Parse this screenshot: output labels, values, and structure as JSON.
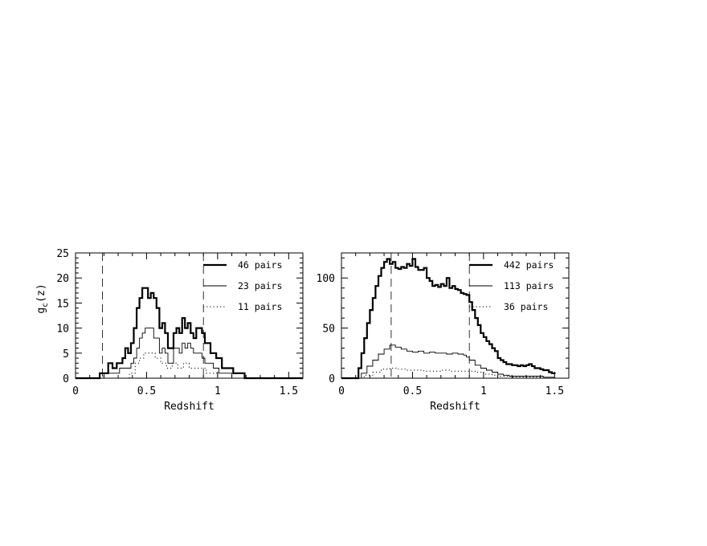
{
  "chart_data": [
    {
      "type": "line",
      "step": true,
      "xlabel": "Redshift",
      "ylabel": "g",
      "ylabel_sub": "c",
      "ylabel_suffix": "(z)",
      "xlim": [
        0,
        1.6
      ],
      "ylim": [
        0,
        25
      ],
      "xticks": [
        0,
        0.5,
        1,
        1.5
      ],
      "xtick_labels": [
        "0",
        "0.5",
        "1",
        "1.5"
      ],
      "yticks": [
        0,
        5,
        10,
        15,
        20,
        25
      ],
      "ytick_labels": [
        "0",
        "5",
        "10",
        "15",
        "20",
        "25"
      ],
      "vlines": [
        0.19,
        0.9
      ],
      "legend_position": "top-right",
      "series": [
        {
          "name": "46 pairs",
          "style": "thick-solid",
          "x": [
            0,
            0.17,
            0.19,
            0.23,
            0.26,
            0.29,
            0.31,
            0.33,
            0.35,
            0.37,
            0.39,
            0.41,
            0.43,
            0.45,
            0.47,
            0.49,
            0.51,
            0.53,
            0.55,
            0.57,
            0.59,
            0.61,
            0.63,
            0.65,
            0.67,
            0.69,
            0.71,
            0.73,
            0.75,
            0.77,
            0.79,
            0.81,
            0.83,
            0.85,
            0.87,
            0.89,
            0.91,
            0.93,
            0.95,
            0.97,
            0.99,
            1.01,
            1.03,
            1.05,
            1.07,
            1.09,
            1.11,
            1.13,
            1.15,
            1.17,
            1.19,
            1.6
          ],
          "y": [
            0,
            1,
            1,
            3,
            2,
            3,
            3,
            4,
            6,
            5,
            7,
            10,
            14,
            16,
            18,
            18,
            16,
            17,
            16,
            14,
            10,
            11,
            9,
            6,
            6,
            9,
            10,
            9,
            12,
            10,
            11,
            9,
            8,
            10,
            10,
            9,
            7,
            7,
            5,
            5,
            4,
            4,
            2,
            2,
            2,
            2,
            1,
            1,
            1,
            1,
            0,
            0
          ]
        },
        {
          "name": "23 pairs",
          "style": "thin-solid",
          "x": [
            0,
            0.17,
            0.2,
            0.25,
            0.31,
            0.35,
            0.39,
            0.41,
            0.43,
            0.45,
            0.47,
            0.49,
            0.51,
            0.53,
            0.55,
            0.57,
            0.59,
            0.61,
            0.63,
            0.65,
            0.67,
            0.69,
            0.71,
            0.73,
            0.75,
            0.77,
            0.79,
            0.81,
            0.83,
            0.85,
            0.87,
            0.89,
            0.91,
            0.93,
            0.97,
            1.01,
            1.05,
            1.1,
            1.6
          ],
          "y": [
            0,
            0,
            1,
            1,
            2,
            2,
            3,
            4,
            6,
            8,
            9,
            10,
            10,
            10,
            8,
            8,
            5,
            6,
            5,
            3,
            3,
            6,
            6,
            5,
            7,
            6,
            7,
            6,
            5,
            5,
            5,
            4,
            3,
            3,
            2,
            1,
            1,
            0,
            0
          ]
        },
        {
          "name": "11 pairs",
          "style": "dotted",
          "x": [
            0,
            0.3,
            0.38,
            0.42,
            0.45,
            0.48,
            0.52,
            0.56,
            0.6,
            0.64,
            0.68,
            0.72,
            0.76,
            0.8,
            0.84,
            0.88,
            0.92,
            0.96,
            1.0,
            1.6
          ],
          "y": [
            0,
            0,
            1,
            3,
            4,
            5,
            5,
            4,
            3,
            2,
            3,
            2,
            3,
            2,
            2,
            2,
            1,
            1,
            0,
            0
          ]
        }
      ]
    },
    {
      "type": "line",
      "step": true,
      "xlabel": "Redshift",
      "xlim": [
        0,
        1.6
      ],
      "ylim": [
        0,
        125
      ],
      "xticks": [
        0,
        0.5,
        1,
        1.5
      ],
      "xtick_labels": [
        "0",
        "0.5",
        "1",
        "1.5"
      ],
      "yticks": [
        0,
        50,
        100
      ],
      "ytick_labels": [
        "0",
        "50",
        "100"
      ],
      "vlines": [
        0.35,
        0.9
      ],
      "legend_position": "top-right",
      "series": [
        {
          "name": "442 pairs",
          "style": "thick-solid",
          "x": [
            0,
            0.1,
            0.12,
            0.14,
            0.16,
            0.18,
            0.2,
            0.22,
            0.24,
            0.26,
            0.28,
            0.3,
            0.32,
            0.34,
            0.36,
            0.38,
            0.4,
            0.42,
            0.44,
            0.46,
            0.48,
            0.5,
            0.52,
            0.54,
            0.56,
            0.58,
            0.6,
            0.62,
            0.64,
            0.66,
            0.68,
            0.7,
            0.72,
            0.74,
            0.76,
            0.78,
            0.8,
            0.82,
            0.84,
            0.86,
            0.88,
            0.9,
            0.92,
            0.94,
            0.96,
            0.98,
            1.0,
            1.02,
            1.04,
            1.06,
            1.08,
            1.1,
            1.12,
            1.14,
            1.16,
            1.18,
            1.2,
            1.22,
            1.24,
            1.26,
            1.28,
            1.3,
            1.32,
            1.34,
            1.36,
            1.38,
            1.4,
            1.42,
            1.44,
            1.46,
            1.48,
            1.5
          ],
          "y": [
            0,
            0,
            10,
            25,
            40,
            55,
            68,
            80,
            92,
            102,
            110,
            116,
            119,
            114,
            116,
            110,
            109,
            111,
            110,
            114,
            112,
            119,
            111,
            108,
            108,
            110,
            100,
            97,
            92,
            93,
            91,
            94,
            92,
            100,
            90,
            92,
            89,
            88,
            85,
            84,
            83,
            76,
            68,
            60,
            53,
            45,
            41,
            37,
            34,
            30,
            27,
            20,
            18,
            16,
            14,
            14,
            13,
            13,
            12,
            13,
            12,
            13,
            14,
            12,
            10,
            10,
            9,
            8,
            8,
            6,
            5,
            4
          ]
        },
        {
          "name": "113 pairs",
          "style": "thin-solid",
          "x": [
            0,
            0.1,
            0.14,
            0.18,
            0.22,
            0.26,
            0.3,
            0.34,
            0.38,
            0.42,
            0.46,
            0.5,
            0.54,
            0.58,
            0.62,
            0.66,
            0.7,
            0.74,
            0.78,
            0.82,
            0.86,
            0.88,
            0.9,
            0.94,
            0.98,
            1.02,
            1.06,
            1.1,
            1.14,
            1.18,
            1.22,
            1.26,
            1.3,
            1.34,
            1.38,
            1.42,
            1.46,
            1.5
          ],
          "y": [
            0,
            0,
            5,
            12,
            18,
            24,
            29,
            33,
            31,
            29,
            27,
            26,
            27,
            25,
            26,
            25,
            25,
            24,
            25,
            24,
            23,
            21,
            18,
            13,
            10,
            8,
            6,
            4,
            3,
            2,
            2,
            2,
            2,
            2,
            2,
            1,
            1,
            1
          ]
        },
        {
          "name": "36 pairs",
          "style": "dotted",
          "x": [
            0,
            0.1,
            0.16,
            0.22,
            0.28,
            0.34,
            0.4,
            0.46,
            0.52,
            0.58,
            0.64,
            0.7,
            0.76,
            0.82,
            0.88,
            0.94,
            1.0,
            1.06,
            1.1,
            1.2,
            1.3,
            1.4,
            1.5
          ],
          "y": [
            0,
            0,
            3,
            6,
            9,
            10,
            9,
            8,
            8,
            7,
            7,
            8,
            7,
            7,
            7,
            6,
            4,
            3,
            2,
            1,
            1,
            0,
            0
          ]
        }
      ]
    }
  ]
}
